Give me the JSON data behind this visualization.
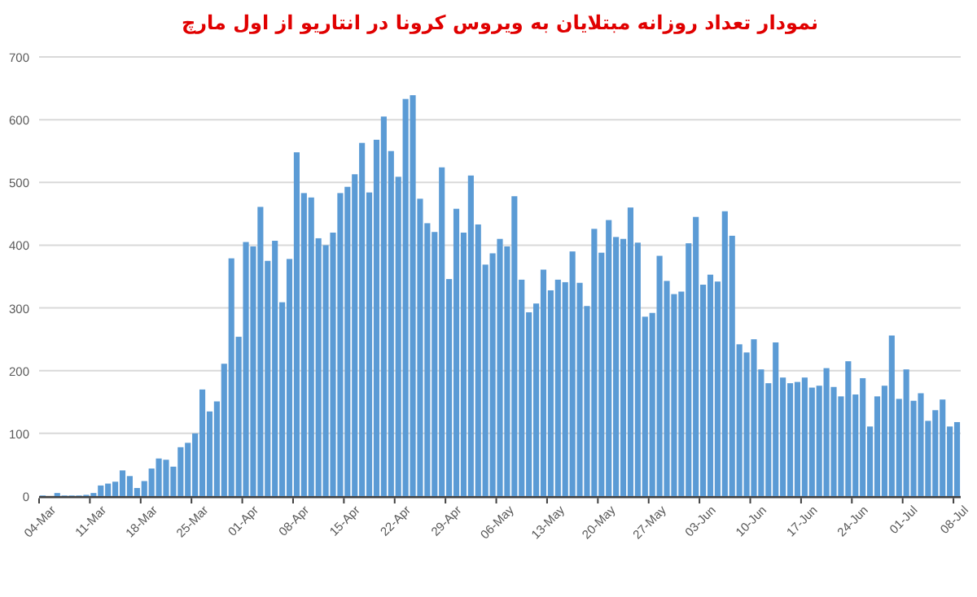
{
  "chart_data": {
    "type": "bar",
    "title": "نمودار تعداد روزانه مبتلایان به ویروس کرونا در انتاریو از اول مارچ",
    "categories": [
      "04-Mar",
      null,
      null,
      null,
      null,
      null,
      null,
      "11-Mar",
      null,
      null,
      null,
      null,
      null,
      null,
      "18-Mar",
      null,
      null,
      null,
      null,
      null,
      null,
      "25-Mar",
      null,
      null,
      null,
      null,
      null,
      null,
      "01-Apr",
      null,
      null,
      null,
      null,
      null,
      null,
      "08-Apr",
      null,
      null,
      null,
      null,
      null,
      null,
      "15-Apr",
      null,
      null,
      null,
      null,
      null,
      null,
      "22-Apr",
      null,
      null,
      null,
      null,
      null,
      null,
      "29-Apr",
      null,
      null,
      null,
      null,
      null,
      null,
      "06-May",
      null,
      null,
      null,
      null,
      null,
      null,
      "13-May",
      null,
      null,
      null,
      null,
      null,
      null,
      "20-May",
      null,
      null,
      null,
      null,
      null,
      null,
      "27-May",
      null,
      null,
      null,
      null,
      null,
      null,
      "03-Jun",
      null,
      null,
      null,
      null,
      null,
      null,
      "10-Jun",
      null,
      null,
      null,
      null,
      null,
      null,
      "17-Jun",
      null,
      null,
      null,
      null,
      null,
      null,
      "24-Jun",
      null,
      null,
      null,
      null,
      null,
      null,
      "01-Jul",
      null,
      null,
      null,
      null,
      null,
      null,
      "08-Jul"
    ],
    "values": [
      1,
      0,
      5,
      1,
      1,
      1,
      2,
      5,
      17,
      20,
      23,
      41,
      32,
      13,
      24,
      44,
      60,
      58,
      47,
      78,
      85,
      100,
      170,
      135,
      151,
      211,
      379,
      254,
      405,
      398,
      461,
      375,
      407,
      309,
      378,
      548,
      483,
      476,
      411,
      400,
      420,
      483,
      493,
      513,
      563,
      484,
      568,
      605,
      550,
      509,
      633,
      639,
      474,
      435,
      421,
      524,
      346,
      458,
      420,
      511,
      433,
      369,
      387,
      410,
      398,
      478,
      345,
      293,
      307,
      361,
      328,
      345,
      341,
      390,
      340,
      303,
      426,
      388,
      440,
      413,
      410,
      460,
      404,
      286,
      292,
      383,
      343,
      322,
      326,
      403,
      445,
      337,
      353,
      342,
      454,
      415,
      242,
      229,
      250,
      202,
      180,
      245,
      189,
      180,
      182,
      189,
      173,
      176,
      204,
      174,
      159,
      215,
      162,
      188,
      111,
      159,
      176,
      256,
      155,
      202,
      152,
      164,
      120,
      137,
      154,
      111,
      118
    ],
    "color": "#5b9bd5",
    "ylim": [
      0,
      700
    ],
    "yticks": [
      0,
      100,
      200,
      300,
      400,
      500,
      600,
      700
    ],
    "grid": "y"
  }
}
